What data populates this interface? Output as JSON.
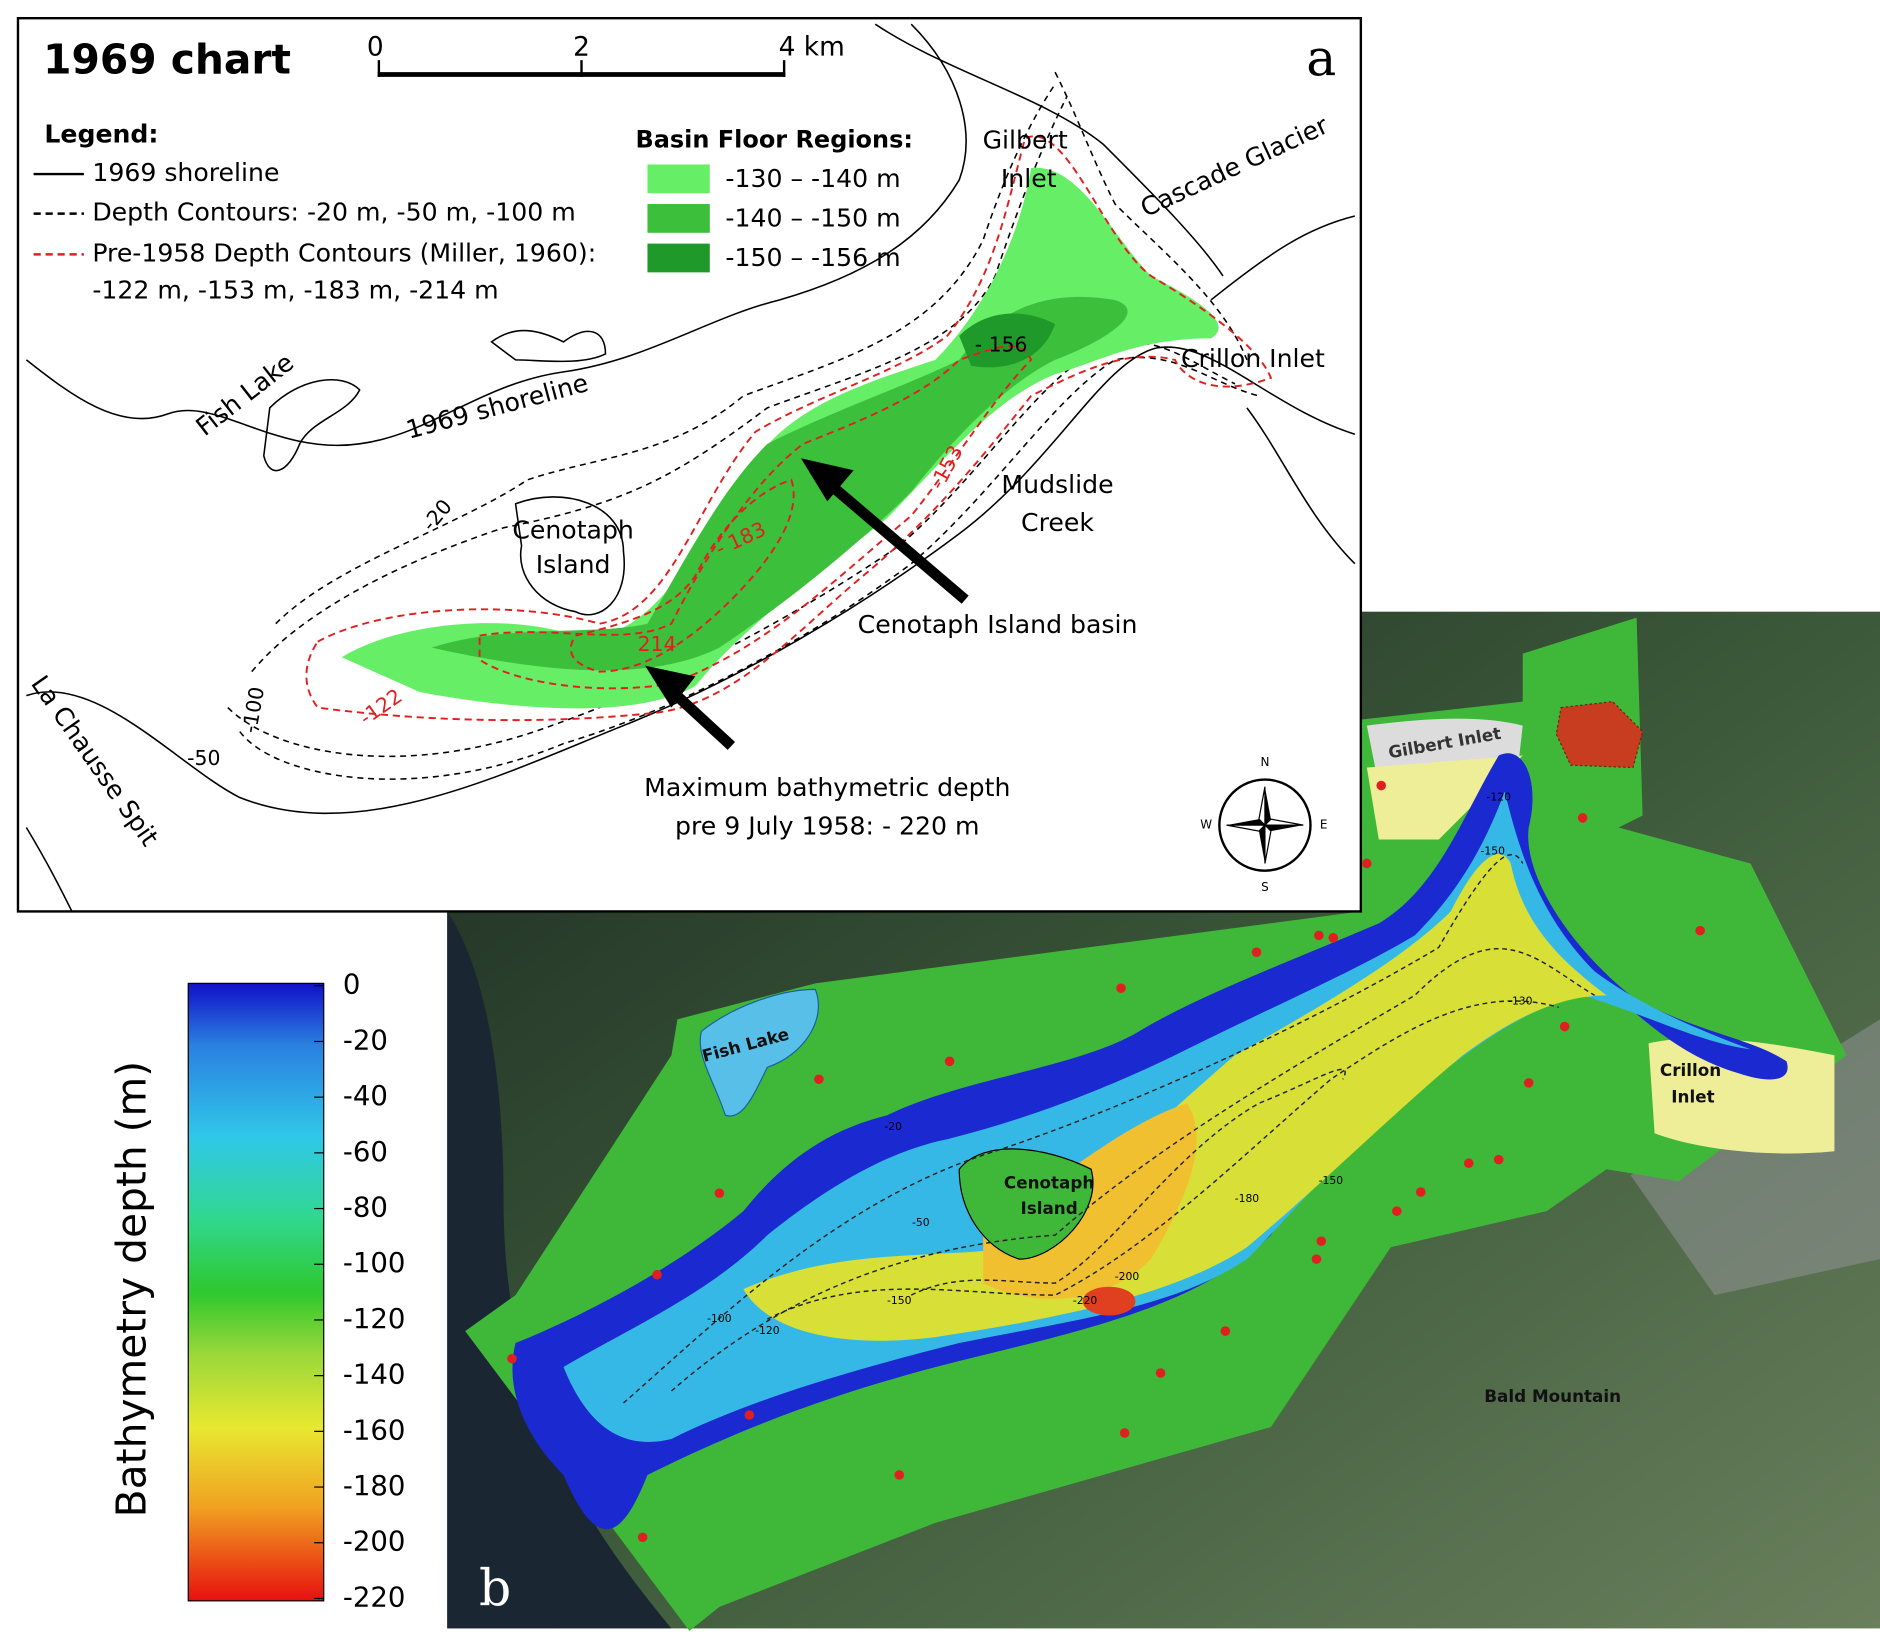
{
  "panel_a": {
    "letter": "a",
    "title": "1969 chart",
    "scale_bar": [
      "0",
      "2",
      "4 km"
    ],
    "legend": {
      "title": "Legend:",
      "items": [
        "1969 shoreline",
        "Depth Contours: -20 m, -50 m, -100 m",
        "Pre-1958 Depth Contours (Miller, 1960):",
        "-122 m, -153 m, -183 m, -214 m"
      ]
    },
    "basin_floor": {
      "title": "Basin Floor Regions:",
      "regions": [
        {
          "label": "-130  –  -140 m",
          "color": "#66ee66"
        },
        {
          "label": "-140  –  -150 m",
          "color": "#3cc03c"
        },
        {
          "label": "-150  –  -156 m",
          "color": "#1f9a2a"
        }
      ]
    },
    "places": [
      [
        "Gilbert",
        "Inlet"
      ],
      [
        "Cascade Glacier"
      ],
      [
        "Crillon Inlet"
      ],
      [
        "Mudslide",
        "Creek"
      ],
      [
        "Cenotaph",
        "Island"
      ],
      [
        "Fish Lake"
      ],
      [
        "1969 shoreline"
      ],
      [
        "La Chausse Spit"
      ]
    ],
    "contour_labels": [
      "- 156",
      "-153",
      "- 183",
      "214",
      "-122",
      "-20",
      "-100",
      "-50"
    ],
    "annotations": [
      [
        "Cenotaph Island basin"
      ],
      [
        "Maximum bathymetric depth",
        "pre 9 July 1958: - 220 m"
      ]
    ],
    "compass": [
      "N",
      "E",
      "S",
      "W"
    ]
  },
  "panel_b": {
    "letter": "b",
    "colorbar": {
      "label": "Bathymetry depth (m)",
      "ticks": [
        0,
        -20,
        -40,
        -60,
        -80,
        -100,
        -120,
        -140,
        -160,
        -180,
        -200,
        -220
      ]
    },
    "places": [
      [
        "Fish Lake"
      ],
      [
        "Cenotaph",
        "Island"
      ],
      [
        "Gilbert Inlet"
      ],
      [
        "Crillon",
        "Inlet"
      ],
      [
        "Bald Mountain"
      ]
    ],
    "contour_labels": [
      "-20",
      "-50",
      "-100",
      "-120",
      "-150",
      "-180",
      "-200",
      "-220",
      "-130",
      "-120",
      "-150",
      "-150"
    ]
  }
}
